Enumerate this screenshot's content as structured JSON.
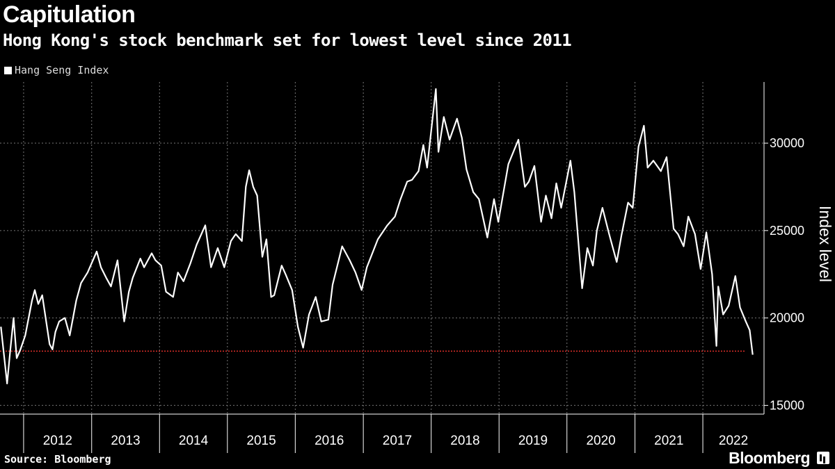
{
  "title": "Capitulation",
  "subtitle": "Hong Kong's stock benchmark set for lowest level since 2011",
  "source": "Source: Bloomberg",
  "brand": "Bloomberg",
  "chart_data": {
    "type": "line",
    "ylabel": "Index level",
    "ylim": [
      14500,
      33500
    ],
    "yticks": [
      15000,
      20000,
      25000,
      30000
    ],
    "year_labels": [
      "2012",
      "2013",
      "2014",
      "2015",
      "2016",
      "2017",
      "2018",
      "2019",
      "2020",
      "2021",
      "2022"
    ],
    "grid": true,
    "legend_position": "top-left",
    "reference_line": {
      "value": 18100,
      "color": "#e0302a",
      "style": "dotted"
    },
    "series": [
      {
        "name": "Hang Seng Index",
        "color": "#ffffff",
        "points": [
          [
            "2011-09-01",
            19500
          ],
          [
            "2011-10-04",
            16250
          ],
          [
            "2011-10-20",
            18000
          ],
          [
            "2011-11-08",
            20000
          ],
          [
            "2011-11-25",
            17700
          ],
          [
            "2011-12-15",
            18200
          ],
          [
            "2012-01-10",
            19000
          ],
          [
            "2012-02-15",
            21000
          ],
          [
            "2012-03-01",
            21600
          ],
          [
            "2012-03-20",
            20800
          ],
          [
            "2012-04-10",
            21300
          ],
          [
            "2012-05-20",
            18500
          ],
          [
            "2012-06-04",
            18200
          ],
          [
            "2012-06-20",
            19200
          ],
          [
            "2012-07-10",
            19800
          ],
          [
            "2012-08-10",
            20000
          ],
          [
            "2012-09-05",
            19000
          ],
          [
            "2012-10-10",
            21000
          ],
          [
            "2012-11-05",
            22000
          ],
          [
            "2012-12-10",
            22600
          ],
          [
            "2013-01-28",
            23800
          ],
          [
            "2013-02-20",
            22900
          ],
          [
            "2013-03-20",
            22300
          ],
          [
            "2013-04-15",
            21800
          ],
          [
            "2013-05-20",
            23300
          ],
          [
            "2013-06-25",
            19800
          ],
          [
            "2013-07-20",
            21500
          ],
          [
            "2013-08-10",
            22300
          ],
          [
            "2013-09-20",
            23400
          ],
          [
            "2013-10-10",
            22900
          ],
          [
            "2013-11-20",
            23700
          ],
          [
            "2013-12-10",
            23300
          ],
          [
            "2014-01-10",
            23000
          ],
          [
            "2014-02-05",
            21500
          ],
          [
            "2014-03-15",
            21200
          ],
          [
            "2014-04-10",
            22600
          ],
          [
            "2014-05-10",
            22100
          ],
          [
            "2014-06-15",
            23100
          ],
          [
            "2014-07-20",
            24200
          ],
          [
            "2014-09-04",
            25300
          ],
          [
            "2014-10-05",
            22900
          ],
          [
            "2014-11-10",
            24000
          ],
          [
            "2014-12-15",
            22900
          ],
          [
            "2015-01-20",
            24400
          ],
          [
            "2015-02-15",
            24800
          ],
          [
            "2015-03-20",
            24400
          ],
          [
            "2015-04-10",
            27500
          ],
          [
            "2015-04-28",
            28450
          ],
          [
            "2015-05-20",
            27500
          ],
          [
            "2015-06-10",
            27000
          ],
          [
            "2015-07-08",
            23500
          ],
          [
            "2015-07-30",
            24500
          ],
          [
            "2015-08-24",
            21200
          ],
          [
            "2015-09-10",
            21300
          ],
          [
            "2015-10-20",
            23000
          ],
          [
            "2015-11-10",
            22500
          ],
          [
            "2015-12-15",
            21600
          ],
          [
            "2016-01-15",
            19500
          ],
          [
            "2016-02-12",
            18300
          ],
          [
            "2016-03-15",
            20200
          ],
          [
            "2016-04-20",
            21200
          ],
          [
            "2016-05-20",
            19800
          ],
          [
            "2016-06-27",
            19900
          ],
          [
            "2016-07-20",
            21900
          ],
          [
            "2016-09-09",
            24100
          ],
          [
            "2016-10-20",
            23300
          ],
          [
            "2016-11-20",
            22600
          ],
          [
            "2016-12-23",
            21600
          ],
          [
            "2017-01-20",
            22900
          ],
          [
            "2017-03-20",
            24500
          ],
          [
            "2017-05-10",
            25300
          ],
          [
            "2017-06-20",
            25800
          ],
          [
            "2017-07-20",
            26800
          ],
          [
            "2017-08-25",
            27800
          ],
          [
            "2017-09-20",
            27900
          ],
          [
            "2017-10-25",
            28400
          ],
          [
            "2017-11-20",
            29900
          ],
          [
            "2017-12-10",
            28600
          ],
          [
            "2018-01-26",
            33100
          ],
          [
            "2018-02-09",
            29500
          ],
          [
            "2018-03-10",
            31500
          ],
          [
            "2018-04-10",
            30200
          ],
          [
            "2018-05-20",
            31400
          ],
          [
            "2018-06-15",
            30300
          ],
          [
            "2018-07-10",
            28500
          ],
          [
            "2018-08-15",
            27200
          ],
          [
            "2018-09-15",
            26800
          ],
          [
            "2018-10-30",
            24600
          ],
          [
            "2018-12-05",
            26800
          ],
          [
            "2018-12-28",
            25500
          ],
          [
            "2019-02-20",
            28800
          ],
          [
            "2019-04-15",
            30200
          ],
          [
            "2019-05-20",
            27500
          ],
          [
            "2019-06-10",
            27800
          ],
          [
            "2019-07-10",
            28700
          ],
          [
            "2019-08-15",
            25500
          ],
          [
            "2019-09-10",
            27000
          ],
          [
            "2019-10-10",
            25700
          ],
          [
            "2019-11-05",
            27700
          ],
          [
            "2019-12-01",
            26300
          ],
          [
            "2020-01-20",
            29000
          ],
          [
            "2020-02-10",
            27200
          ],
          [
            "2020-03-23",
            21700
          ],
          [
            "2020-04-20",
            24000
          ],
          [
            "2020-05-20",
            23000
          ],
          [
            "2020-06-10",
            25000
          ],
          [
            "2020-07-10",
            26300
          ],
          [
            "2020-08-15",
            24800
          ],
          [
            "2020-09-25",
            23200
          ],
          [
            "2020-10-20",
            24700
          ],
          [
            "2020-11-25",
            26600
          ],
          [
            "2020-12-20",
            26300
          ],
          [
            "2021-01-20",
            29800
          ],
          [
            "2021-02-18",
            31000
          ],
          [
            "2021-03-10",
            28600
          ],
          [
            "2021-04-10",
            29000
          ],
          [
            "2021-05-20",
            28400
          ],
          [
            "2021-06-20",
            29200
          ],
          [
            "2021-07-28",
            25100
          ],
          [
            "2021-08-20",
            24800
          ],
          [
            "2021-09-20",
            24100
          ],
          [
            "2021-10-15",
            25800
          ],
          [
            "2021-11-20",
            24800
          ],
          [
            "2021-12-20",
            22800
          ],
          [
            "2022-01-20",
            24900
          ],
          [
            "2022-02-20",
            22500
          ],
          [
            "2022-03-15",
            18400
          ],
          [
            "2022-03-25",
            21800
          ],
          [
            "2022-04-20",
            20200
          ],
          [
            "2022-05-20",
            20700
          ],
          [
            "2022-06-25",
            22400
          ],
          [
            "2022-07-20",
            20600
          ],
          [
            "2022-08-20",
            19800
          ],
          [
            "2022-09-10",
            19300
          ],
          [
            "2022-09-26",
            17900
          ]
        ]
      }
    ]
  }
}
